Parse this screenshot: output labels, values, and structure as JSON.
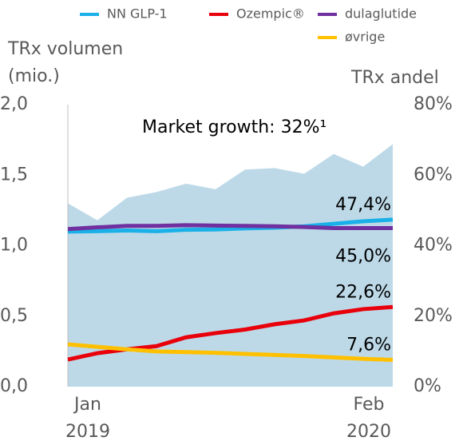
{
  "chart_data": {
    "type": "area_line",
    "annotation": "Market growth: 32%¹",
    "y_label": "TRx volumen (mio.)",
    "y2_label": "TRx andel",
    "categories": [
      "Jan 2019",
      null,
      null,
      null,
      null,
      null,
      null,
      null,
      null,
      null,
      null,
      "Feb 2020"
    ],
    "area": {
      "color": "#bdd9e8",
      "values": [
        1.3,
        1.18,
        1.34,
        1.38,
        1.44,
        1.4,
        1.54,
        1.55,
        1.51,
        1.65,
        1.56,
        1.72
      ]
    },
    "series": [
      {
        "name": "NN GLP-1",
        "color": "#1ab0e8",
        "axis": "y2",
        "values": [
          44.0,
          44.1,
          44.3,
          44.1,
          44.5,
          44.6,
          44.9,
          45.1,
          45.5,
          46.2,
          46.9,
          47.4
        ],
        "value_labels": [
          null,
          null,
          null,
          null,
          null,
          null,
          null,
          null,
          null,
          null,
          null,
          "47,4%"
        ]
      },
      {
        "name": "Ozempic®",
        "color": "#e8000b",
        "axis": "y2",
        "values": [
          7.7,
          9.5,
          10.6,
          11.5,
          14.0,
          15.2,
          16.2,
          17.7,
          18.8,
          20.8,
          22.0,
          22.6
        ],
        "value_labels": [
          null,
          null,
          null,
          null,
          null,
          null,
          null,
          null,
          null,
          null,
          null,
          "22,6%"
        ]
      },
      {
        "name": "dulaglutide",
        "color": "#7030a0",
        "axis": "y2",
        "values": [
          44.7,
          45.2,
          45.6,
          45.6,
          45.8,
          45.7,
          45.6,
          45.5,
          45.3,
          45.0,
          45.0,
          45.0
        ],
        "value_labels": [
          null,
          null,
          null,
          null,
          null,
          null,
          null,
          null,
          null,
          null,
          null,
          "45,0%"
        ]
      },
      {
        "name": "øvrige",
        "color": "#ffc000",
        "axis": "y2",
        "values": [
          12.0,
          11.3,
          10.6,
          10.0,
          9.8,
          9.6,
          9.3,
          9.0,
          8.7,
          8.3,
          7.9,
          7.6
        ],
        "value_labels": [
          null,
          null,
          null,
          null,
          null,
          null,
          null,
          null,
          null,
          null,
          null,
          "7,6%"
        ]
      }
    ],
    "ylim": [
      0,
      2
    ],
    "yticks": [
      {
        "value": 0,
        "label": "0,0"
      },
      {
        "value": 0.5,
        "label": "0,5"
      },
      {
        "value": 1,
        "label": "1,0"
      },
      {
        "value": 1.5,
        "label": "1,5"
      },
      {
        "value": 2,
        "label": "2,0"
      }
    ],
    "y2lim": [
      0,
      80
    ],
    "y2ticks": [
      {
        "value": 0,
        "label": "0%"
      },
      {
        "value": 20,
        "label": "20%"
      },
      {
        "value": 40,
        "label": "40%"
      },
      {
        "value": 60,
        "label": "60%"
      },
      {
        "value": 80,
        "label": "80%"
      }
    ]
  }
}
